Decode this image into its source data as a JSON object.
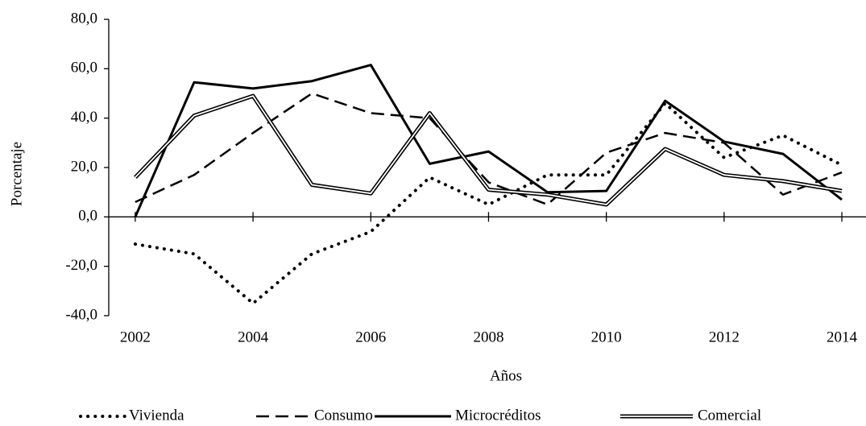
{
  "chart_data": {
    "type": "line",
    "x_label": "Años",
    "y_label": "Porcentaje",
    "x": [
      2002,
      2003,
      2004,
      2005,
      2006,
      2007,
      2008,
      2009,
      2010,
      2011,
      2012,
      2013,
      2014
    ],
    "series": [
      {
        "name": "Vivienda",
        "color": "#000000",
        "style": "dotted",
        "values": [
          -11,
          -15,
          -35,
          -15,
          -6,
          16,
          5,
          17,
          17,
          46,
          24,
          33,
          21
        ]
      },
      {
        "name": "Consumo",
        "color": "#000000",
        "style": "dashed",
        "values": [
          6,
          17,
          34,
          50,
          42,
          40,
          14,
          5,
          26,
          34,
          30,
          9,
          18
        ]
      },
      {
        "name": "Microcréditos",
        "color": "#000000",
        "style": "solid",
        "values": [
          0,
          54.5,
          52,
          55,
          61.5,
          21.5,
          26.5,
          10,
          10.5,
          47,
          30.5,
          25.5,
          7
        ]
      },
      {
        "name": "Comercial",
        "color": "#000000",
        "style": "double",
        "values": [
          16,
          41,
          49,
          13,
          9.5,
          42,
          11,
          9,
          5,
          27.5,
          17,
          14.5,
          10.5
        ]
      }
    ],
    "xlim": [
      2001.55,
      2014.41
    ],
    "xticks": [
      2002,
      2004,
      2006,
      2008,
      2010,
      2012,
      2014
    ],
    "ylim": [
      -40,
      80
    ],
    "yticks": [
      {
        "value": -40,
        "label": "-40,0"
      },
      {
        "value": -20,
        "label": "-20,0"
      },
      {
        "value": 0,
        "label": "0,0"
      },
      {
        "value": 20,
        "label": "20,0"
      },
      {
        "value": 40,
        "label": "40,0"
      },
      {
        "value": 60,
        "label": "60,0"
      },
      {
        "value": 80,
        "label": "80,0"
      }
    ],
    "legend": "bottom"
  }
}
